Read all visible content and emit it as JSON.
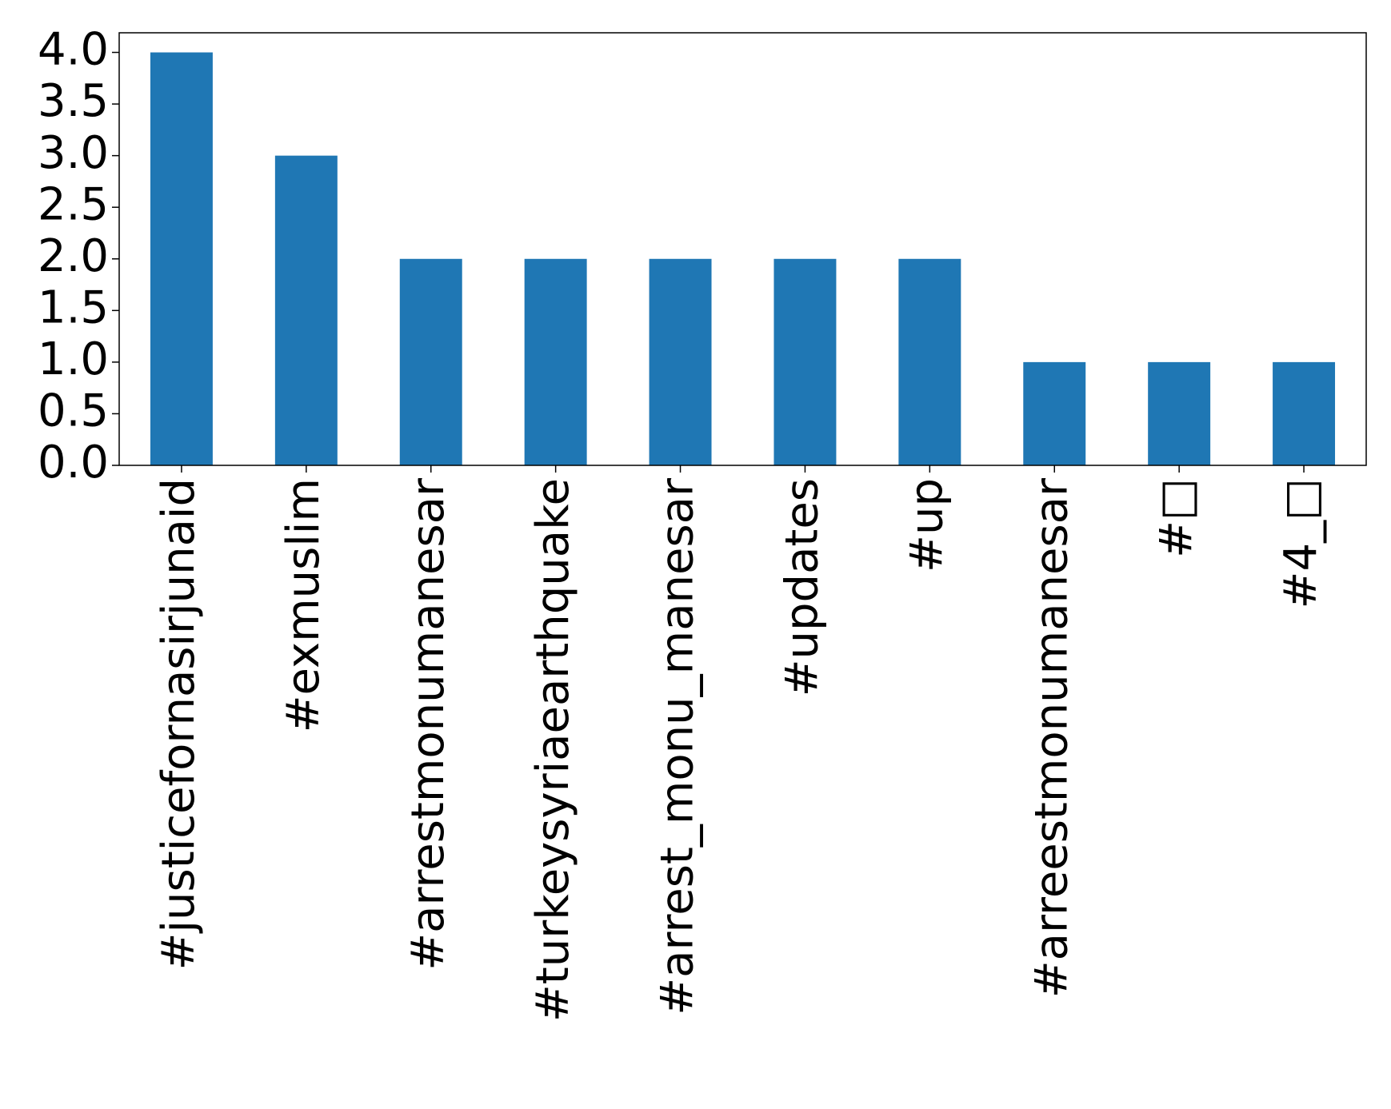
{
  "chart_data": {
    "type": "bar",
    "categories": [
      "#justicefornasirjunaid",
      "#exmuslim",
      "#arrestmonumanesar",
      "#turkeysyriaearthquake",
      "#arrest_monu_manesar",
      "#updates",
      "#up",
      "#arreestmonumanesar",
      "#□",
      "#4_□"
    ],
    "values": [
      4,
      3,
      2,
      2,
      2,
      2,
      2,
      1,
      1,
      1
    ],
    "color": "#1f77b4",
    "ylim": [
      0,
      4.19
    ],
    "yticks": [
      {
        "value": 0,
        "label": "0.0"
      },
      {
        "value": 0.5,
        "label": "0.5"
      },
      {
        "value": 1,
        "label": "1.0"
      },
      {
        "value": 1.5,
        "label": "1.5"
      },
      {
        "value": 2,
        "label": "2.0"
      },
      {
        "value": 2.5,
        "label": "2.5"
      },
      {
        "value": 3,
        "label": "3.0"
      },
      {
        "value": 3.5,
        "label": "3.5"
      },
      {
        "value": 4,
        "label": "4.0"
      }
    ],
    "grid": false
  }
}
